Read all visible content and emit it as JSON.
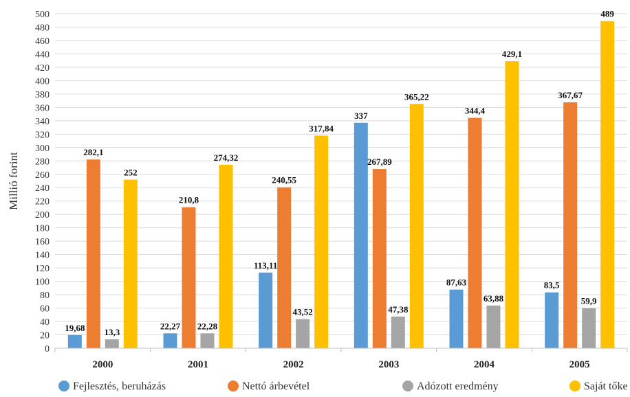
{
  "chart_data": {
    "type": "bar",
    "ylabel": "Millió forint",
    "ylim": [
      0,
      500
    ],
    "ytick_step": 20,
    "grid": true,
    "legend_position": "bottom",
    "categories": [
      "2000",
      "2001",
      "2002",
      "2003",
      "2004",
      "2005"
    ],
    "series": [
      {
        "name": "Fejlesztés, beruházás",
        "color": "#5b9bd5",
        "values": [
          19.68,
          22.27,
          113.11,
          337,
          87.63,
          83.5
        ],
        "labels": [
          "19,68",
          "22,27",
          "113,11",
          "337",
          "87,63",
          "83,5"
        ]
      },
      {
        "name": "Nettó árbevétel",
        "color": "#ed7d31",
        "values": [
          282.1,
          210.8,
          240.55,
          267.89,
          344.4,
          367.67
        ],
        "labels": [
          "282,1",
          "210,8",
          "240,55",
          "267,89",
          "344,4",
          "367,67"
        ]
      },
      {
        "name": "Adózott eredmény",
        "color": "#a5a5a5",
        "values": [
          13.3,
          22.28,
          43.52,
          47.38,
          63.88,
          59.9
        ],
        "labels": [
          "13,3",
          "22,28",
          "43,52",
          "47,38",
          "63,88",
          "59,9"
        ]
      },
      {
        "name": "Saját tőke",
        "color": "#ffc000",
        "values": [
          252,
          274.32,
          317.84,
          365.22,
          429.1,
          489
        ],
        "labels": [
          "252",
          "274,32",
          "317,84",
          "365,22",
          "429,1",
          "489"
        ]
      }
    ]
  }
}
